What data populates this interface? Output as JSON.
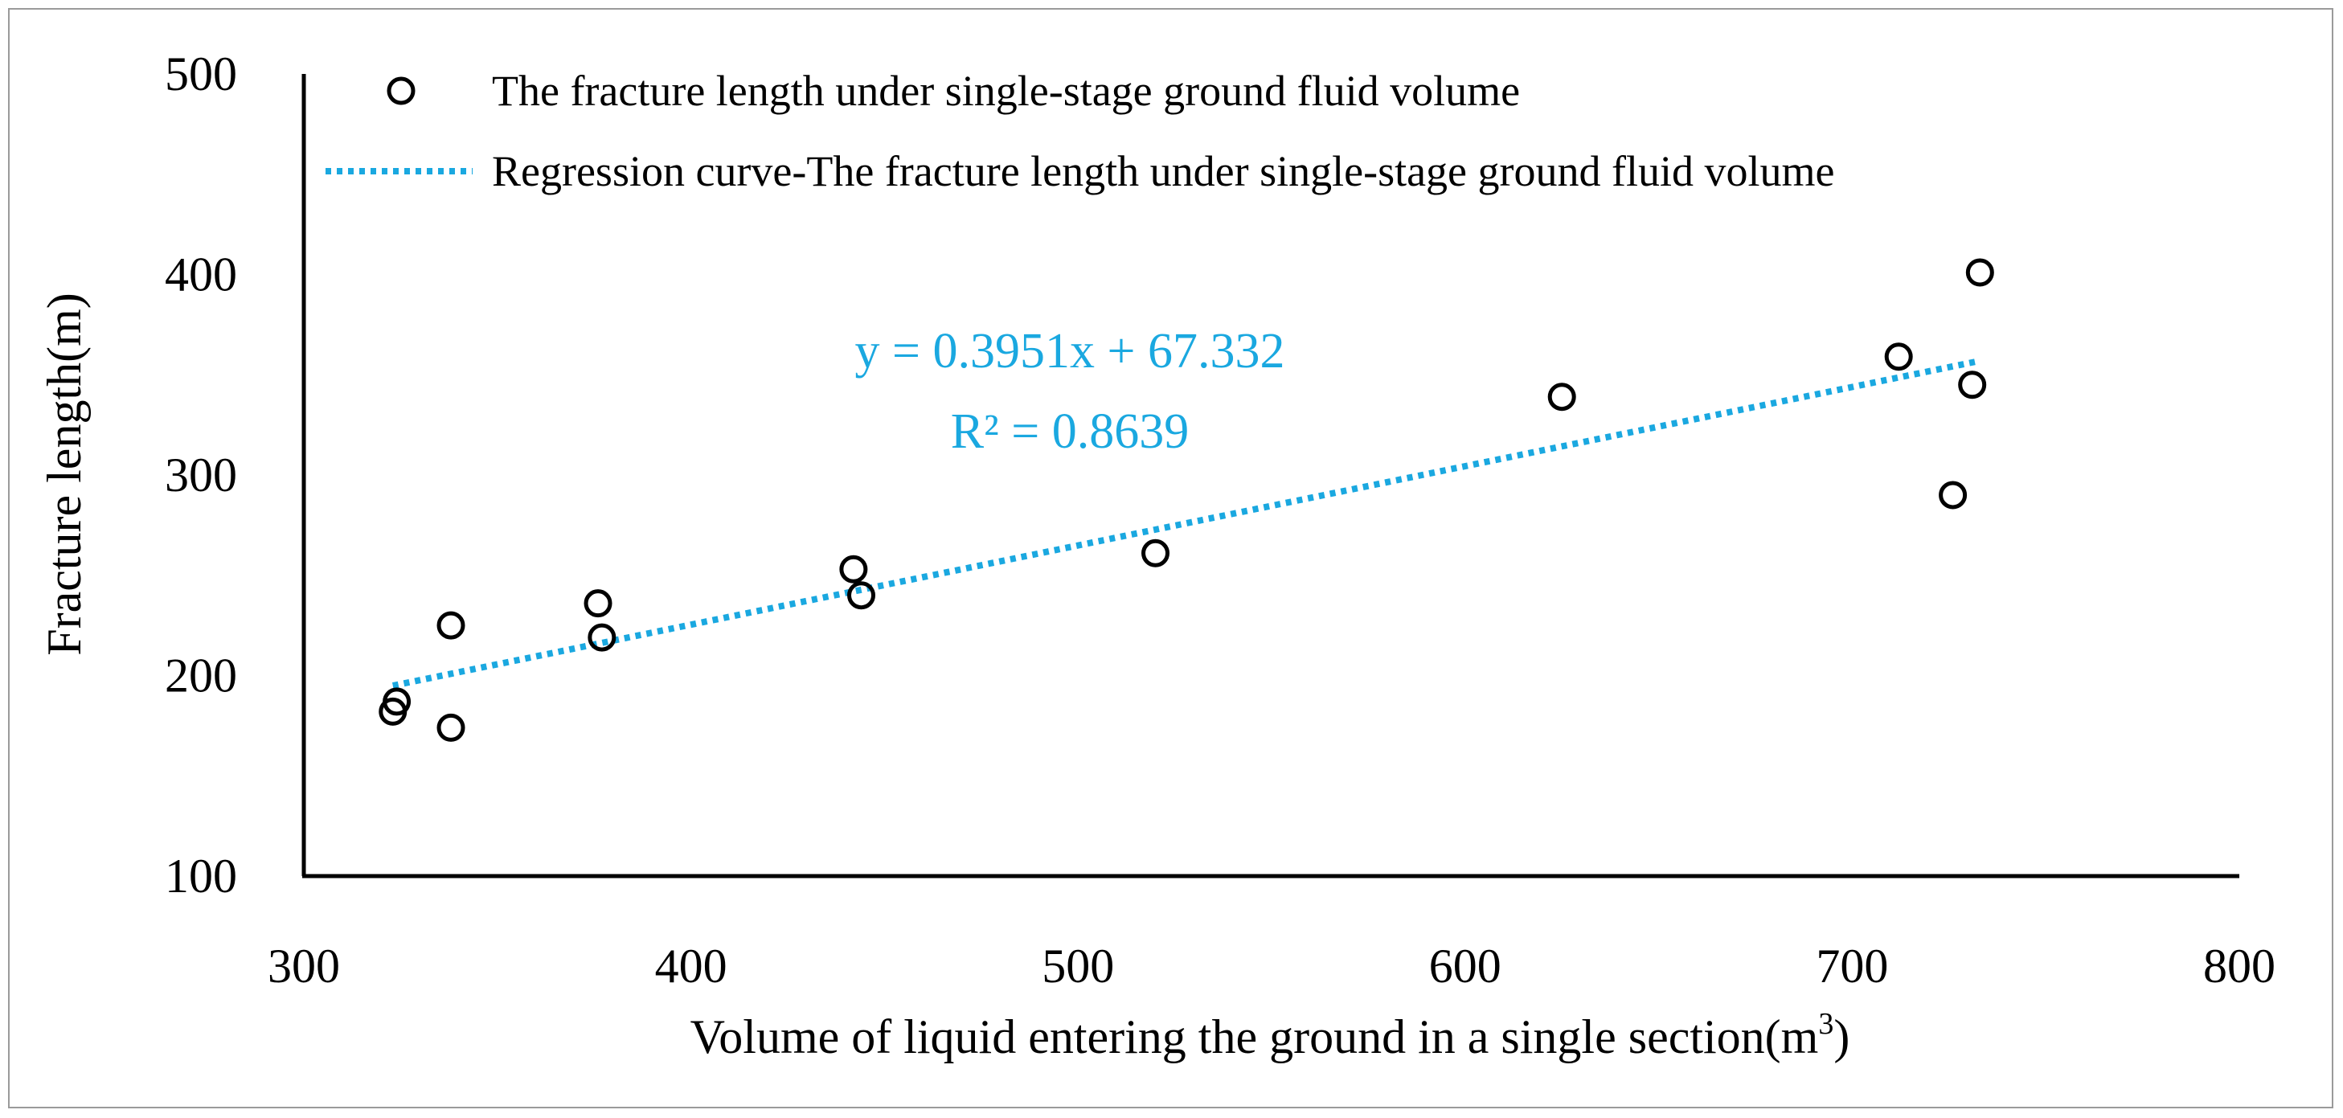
{
  "chart_data": {
    "type": "scatter",
    "title": "",
    "xlabel": "Volume of liquid entering the ground in a single section(m",
    "xlabel_sup": "3",
    "xlabel_end": ")",
    "ylabel": "Fracture length(m)",
    "xlim": [
      300,
      800
    ],
    "ylim": [
      100,
      500
    ],
    "xticks": [
      300,
      400,
      500,
      600,
      700,
      800
    ],
    "yticks": [
      100,
      200,
      300,
      400,
      500
    ],
    "grid": false,
    "legend_position": "top",
    "series": [
      {
        "name": "The fracture length under single-stage ground fluid volume",
        "marker": "open-circle",
        "color": "#000000",
        "points": [
          {
            "x": 323,
            "y": 182
          },
          {
            "x": 324,
            "y": 187
          },
          {
            "x": 338,
            "y": 225
          },
          {
            "x": 338,
            "y": 174
          },
          {
            "x": 376,
            "y": 236
          },
          {
            "x": 377,
            "y": 219
          },
          {
            "x": 442,
            "y": 253
          },
          {
            "x": 444,
            "y": 240
          },
          {
            "x": 520,
            "y": 261
          },
          {
            "x": 625,
            "y": 339
          },
          {
            "x": 712,
            "y": 359
          },
          {
            "x": 726,
            "y": 290
          },
          {
            "x": 731,
            "y": 345
          },
          {
            "x": 733,
            "y": 401
          }
        ]
      },
      {
        "name": "Regression curve-The fracture length under single-stage ground fluid volume",
        "type": "trendline",
        "style": "dotted",
        "color": "#1aa8e0",
        "slope": 0.3951,
        "intercept": 67.332,
        "x_range": [
          323,
          733
        ]
      }
    ],
    "annotations": [
      {
        "text": "y = 0.3951x + 67.332",
        "color": "#1aa8e0"
      },
      {
        "text": "R² = 0.8639",
        "color": "#1aa8e0"
      }
    ]
  }
}
